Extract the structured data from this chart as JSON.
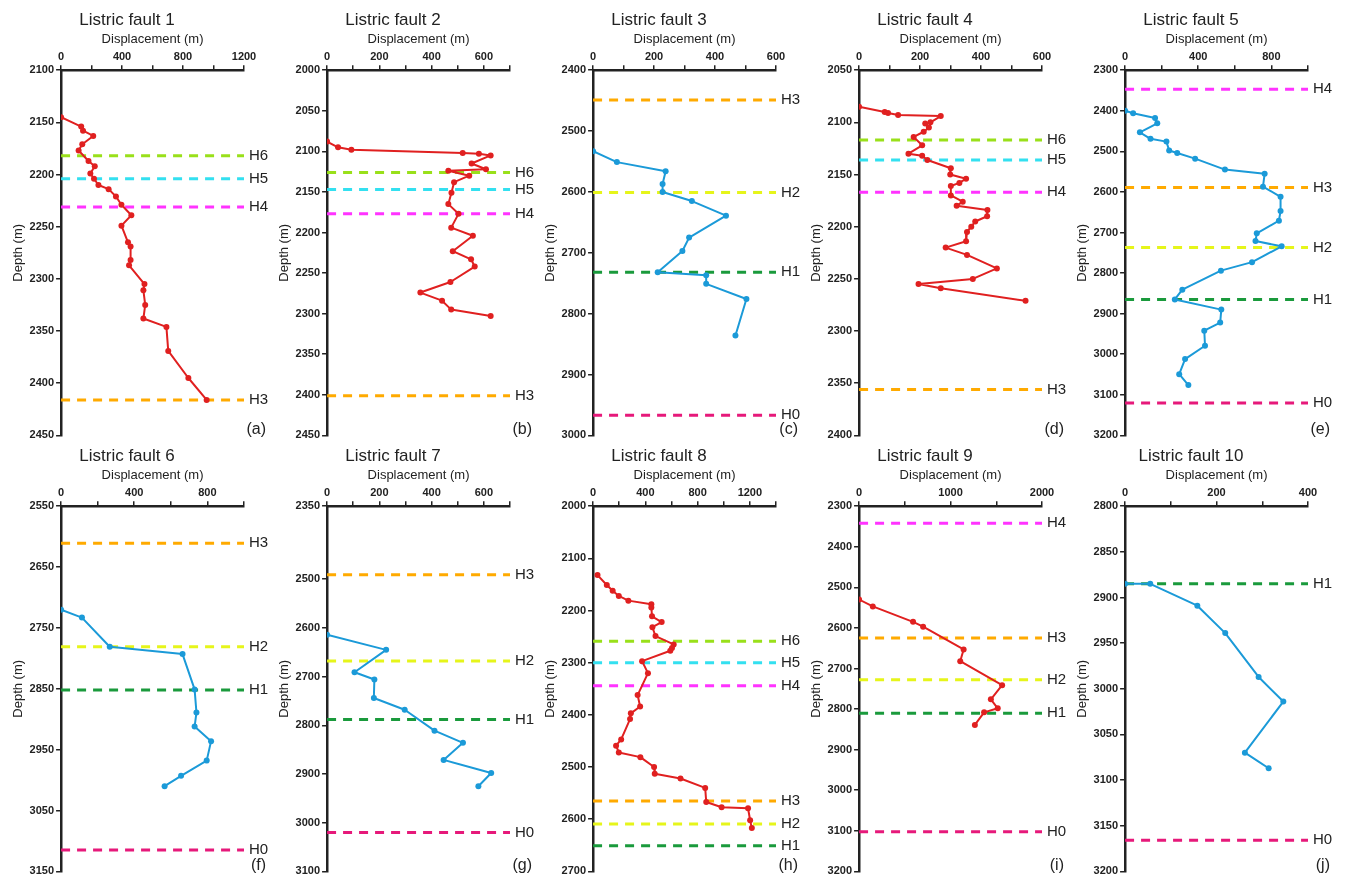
{
  "chart_data": [
    {
      "type": "line",
      "title": "Listric fault 1",
      "xlabel": "Displacement (m)",
      "ylabel": "Depth (m)",
      "xlim": [
        0,
        1200
      ],
      "xticks": [
        0,
        {
          "value": 200,
          "label": null
        },
        400,
        {
          "value": 600,
          "label": null
        },
        800,
        {
          "value": 1000,
          "label": null
        },
        1200
      ],
      "ylim": [
        2450,
        2100
      ],
      "yticks": [
        2100,
        2150,
        2200,
        2250,
        2300,
        2350,
        2400,
        2450
      ],
      "marker": "circle",
      "annotations": [
        "(a)"
      ],
      "series": [
        {
          "color": "#e02020",
          "x": [
            0,
            132,
            144,
            211,
            139,
            115,
            180,
            221,
            192,
            216,
            245,
            312,
            360,
            396,
            461,
            396,
            439,
            456,
            456,
            446,
            547,
            540,
            552,
            540,
            691,
            703,
            835,
            955
          ],
          "values": [
            2145,
            2154,
            2158,
            2163,
            2171,
            2177,
            2187,
            2192,
            2199,
            2204,
            2210,
            2214,
            2221,
            2229,
            2239,
            2249,
            2265,
            2269,
            2282,
            2287,
            2305,
            2311,
            2325,
            2338,
            2346,
            2369,
            2395,
            2416
          ]
        }
      ],
      "ref_lines": [
        {
          "axis": "y",
          "value": 2182,
          "label": "H6",
          "color": "#99e01a",
          "line_style": "dashed"
        },
        {
          "axis": "y",
          "value": 2204,
          "label": "H5",
          "color": "#33e0f0",
          "line_style": "dashed"
        },
        {
          "axis": "y",
          "value": 2231,
          "label": "H4",
          "color": "#ff33ff",
          "line_style": "dashed"
        },
        {
          "axis": "y",
          "value": 2416,
          "label": "H3",
          "color": "#ffaa00",
          "line_style": "dashed"
        }
      ]
    },
    {
      "type": "line",
      "title": "Listric fault 2",
      "xlabel": "Displacement (m)",
      "ylabel": "Depth (m)",
      "xlim": [
        0,
        700
      ],
      "xticks": [
        0,
        {
          "value": 100,
          "label": null
        },
        200,
        {
          "value": 300,
          "label": null
        },
        400,
        {
          "value": 500,
          "label": null
        },
        600,
        {
          "value": 700,
          "label": null
        }
      ],
      "ylim": [
        2450,
        2000
      ],
      "yticks": [
        2000,
        2050,
        2100,
        2150,
        2200,
        2250,
        2300,
        2350,
        2400,
        2450
      ],
      "marker": "circle",
      "annotations": [
        "(b)"
      ],
      "series": [
        {
          "color": "#e02020",
          "x": [
            0,
            42,
            93,
            519,
            581,
            626,
            553,
            608,
            464,
            544,
            486,
            476,
            464,
            503,
            475,
            558,
            481,
            551,
            565,
            472,
            357,
            440,
            475,
            626
          ],
          "values": [
            2088,
            2095,
            2098,
            2102,
            2103,
            2105,
            2115,
            2122,
            2124,
            2130,
            2138,
            2151,
            2165,
            2177,
            2194,
            2204,
            2223,
            2233,
            2242,
            2261,
            2274,
            2284,
            2295,
            2303
          ]
        }
      ],
      "ref_lines": [
        {
          "axis": "y",
          "value": 2126,
          "label": "H6",
          "color": "#99e01a",
          "line_style": "dashed"
        },
        {
          "axis": "y",
          "value": 2147,
          "label": "H5",
          "color": "#33e0f0",
          "line_style": "dashed"
        },
        {
          "axis": "y",
          "value": 2177,
          "label": "H4",
          "color": "#ff33ff",
          "line_style": "dashed"
        },
        {
          "axis": "y",
          "value": 2401,
          "label": "H3",
          "color": "#ffaa00",
          "line_style": "dashed"
        }
      ]
    },
    {
      "type": "line",
      "title": "Listric fault 3",
      "xlabel": "Displacement (m)",
      "ylabel": "Depth (m)",
      "xlim": [
        0,
        600
      ],
      "xticks": [
        0,
        {
          "value": 100,
          "label": null
        },
        200,
        {
          "value": 300,
          "label": null
        },
        400,
        {
          "value": 500,
          "label": null
        },
        600
      ],
      "ylim": [
        3000,
        2400
      ],
      "yticks": [
        2400,
        2500,
        2600,
        2700,
        2800,
        2900,
        3000
      ],
      "marker": "circle",
      "annotations": [
        "(c)"
      ],
      "series": [
        {
          "color": "#1b9ad8",
          "x": [
            0,
            78,
            238,
            228,
            228,
            324,
            436,
            315,
            293,
            212,
            371,
            371,
            503,
            467
          ],
          "values": [
            2533,
            2551,
            2566,
            2587,
            2600,
            2615,
            2639,
            2675,
            2697,
            2732,
            2737,
            2751,
            2776,
            2836
          ]
        }
      ],
      "ref_lines": [
        {
          "axis": "y",
          "value": 2449,
          "label": "H3",
          "color": "#ffaa00",
          "line_style": "dashed"
        },
        {
          "axis": "y",
          "value": 2601,
          "label": "H2",
          "color": "#e6f51a",
          "line_style": "dashed"
        },
        {
          "axis": "y",
          "value": 2732,
          "label": "H1",
          "color": "#1a9a3c",
          "line_style": "dashed"
        },
        {
          "axis": "y",
          "value": 2967,
          "label": "H0",
          "color": "#e6197a",
          "line_style": "dashed"
        }
      ]
    },
    {
      "type": "line",
      "title": "Listric fault 4",
      "xlabel": "Displacement (m)",
      "ylabel": "Depth (m)",
      "xlim": [
        0,
        600
      ],
      "xticks": [
        0,
        {
          "value": 100,
          "label": null
        },
        200,
        {
          "value": 300,
          "label": null
        },
        400,
        {
          "value": 500,
          "label": null
        },
        600
      ],
      "ylim": [
        2400,
        2050
      ],
      "yticks": [
        2050,
        2100,
        2150,
        2200,
        2250,
        2300,
        2350,
        2400
      ],
      "marker": "circle",
      "annotations": [
        "(d)"
      ],
      "series": [
        {
          "color": "#e02020",
          "x": [
            0,
            84,
            95,
            128,
            268,
            234,
            217,
            229,
            212,
            179,
            207,
            162,
            207,
            224,
            301,
            299,
            351,
            329,
            301,
            301,
            340,
            320,
            421,
            420,
            381,
            368,
            354,
            351,
            284,
            354,
            452,
            373,
            195,
            268,
            546
          ],
          "values": [
            2085,
            2090,
            2091,
            2093,
            2094,
            2100,
            2101,
            2105,
            2109,
            2114,
            2122,
            2130,
            2132,
            2136,
            2144,
            2150,
            2154,
            2158,
            2161,
            2170,
            2176,
            2180,
            2184,
            2190,
            2195,
            2200,
            2205,
            2214,
            2220,
            2227,
            2240,
            2250,
            2255,
            2259,
            2271
          ]
        }
      ],
      "ref_lines": [
        {
          "axis": "y",
          "value": 2117,
          "label": "H6",
          "color": "#99e01a",
          "line_style": "dashed"
        },
        {
          "axis": "y",
          "value": 2136,
          "label": "H5",
          "color": "#33e0f0",
          "line_style": "dashed"
        },
        {
          "axis": "y",
          "value": 2167,
          "label": "H4",
          "color": "#ff33ff",
          "line_style": "dashed"
        },
        {
          "axis": "y",
          "value": 2356,
          "label": "H3",
          "color": "#ffaa00",
          "line_style": "dashed"
        }
      ]
    },
    {
      "type": "line",
      "title": "Listric fault 5",
      "xlabel": "Displacement (m)",
      "ylabel": "Depth (m)",
      "xlim": [
        0,
        1000
      ],
      "xticks": [
        0,
        {
          "value": 200,
          "label": null
        },
        400,
        {
          "value": 600,
          "label": null
        },
        800,
        {
          "value": 1000,
          "label": null
        }
      ],
      "ylim": [
        3200,
        2300
      ],
      "yticks": [
        2300,
        2400,
        2500,
        2600,
        2700,
        2800,
        2900,
        3000,
        3100,
        3200
      ],
      "marker": "circle",
      "annotations": [
        "(e)"
      ],
      "series": [
        {
          "color": "#1b9ad8",
          "x": [
            0,
            44,
            164,
            176,
            81,
            139,
            226,
            241,
            285,
            383,
            546,
            763,
            754,
            850,
            850,
            841,
            720,
            713,
            856,
            694,
            524,
            313,
            272,
            526,
            520,
            433,
            437,
            328,
            296,
            346
          ],
          "values": [
            2400,
            2406,
            2418,
            2431,
            2453,
            2469,
            2476,
            2498,
            2504,
            2518,
            2545,
            2555,
            2587,
            2612,
            2647,
            2671,
            2702,
            2721,
            2734,
            2773,
            2794,
            2841,
            2865,
            2890,
            2922,
            2942,
            2979,
            3012,
            3049,
            3076
          ]
        }
      ],
      "ref_lines": [
        {
          "axis": "y",
          "value": 2347,
          "label": "H4",
          "color": "#ff33ff",
          "line_style": "dashed"
        },
        {
          "axis": "y",
          "value": 2589,
          "label": "H3",
          "color": "#ffaa00",
          "line_style": "dashed"
        },
        {
          "axis": "y",
          "value": 2737,
          "label": "H2",
          "color": "#e6f51a",
          "line_style": "dashed"
        },
        {
          "axis": "y",
          "value": 2865,
          "label": "H1",
          "color": "#1a9a3c",
          "line_style": "dashed"
        },
        {
          "axis": "y",
          "value": 3120,
          "label": "H0",
          "color": "#e6197a",
          "line_style": "dashed"
        }
      ]
    },
    {
      "type": "line",
      "title": "Listric fault 6",
      "xlabel": "Displacement (m)",
      "ylabel": "Depth (m)",
      "xlim": [
        0,
        1000
      ],
      "xticks": [
        0,
        {
          "value": 200,
          "label": null
        },
        400,
        {
          "value": 600,
          "label": null
        },
        800,
        {
          "value": 1000,
          "label": null
        }
      ],
      "ylim": [
        3150,
        2550
      ],
      "yticks": [
        2550,
        2650,
        2750,
        2850,
        2950,
        3050,
        3150
      ],
      "marker": "circle",
      "annotations": [
        "(f)"
      ],
      "series": [
        {
          "color": "#1b9ad8",
          "x": [
            0,
            114,
            266,
            664,
            730,
            740,
            730,
            820,
            796,
            656,
            566
          ],
          "values": [
            2720,
            2733,
            2781,
            2793,
            2851,
            2889,
            2912,
            2936,
            2968,
            2993,
            3010
          ]
        }
      ],
      "ref_lines": [
        {
          "axis": "y",
          "value": 2611,
          "label": "H3",
          "color": "#ffaa00",
          "line_style": "dashed"
        },
        {
          "axis": "y",
          "value": 2781,
          "label": "H2",
          "color": "#e6f51a",
          "line_style": "dashed"
        },
        {
          "axis": "y",
          "value": 2852,
          "label": "H1",
          "color": "#1a9a3c",
          "line_style": "dashed"
        },
        {
          "axis": "y",
          "value": 3115,
          "label": "H0",
          "color": "#e6197a",
          "line_style": "dashed"
        }
      ]
    },
    {
      "type": "line",
      "title": "Listric fault 7",
      "xlabel": "Displacement (m)",
      "ylabel": "Depth (m)",
      "xlim": [
        0,
        700
      ],
      "xticks": [
        0,
        {
          "value": 100,
          "label": null
        },
        200,
        {
          "value": 300,
          "label": null
        },
        400,
        {
          "value": 500,
          "label": null
        },
        600,
        {
          "value": 700,
          "label": null
        }
      ],
      "ylim": [
        3100,
        2350
      ],
      "yticks": [
        2350,
        2500,
        2600,
        2700,
        2800,
        2900,
        3000,
        3100
      ],
      "marker": "circle",
      "annotations": [
        "(g)"
      ],
      "series": [
        {
          "color": "#1b9ad8",
          "x": [
            0,
            226,
            105,
            181,
            179,
            297,
            411,
            520,
            446,
            628,
            579
          ],
          "values": [
            2614,
            2645,
            2691,
            2706,
            2744,
            2768,
            2811,
            2836,
            2871,
            2898,
            2925
          ]
        }
      ],
      "ref_lines": [
        {
          "axis": "y",
          "value": 2491,
          "label": "H3",
          "color": "#ffaa00",
          "line_style": "dashed"
        },
        {
          "axis": "y",
          "value": 2668,
          "label": "H2",
          "color": "#e6f51a",
          "line_style": "dashed"
        },
        {
          "axis": "y",
          "value": 2788,
          "label": "H1",
          "color": "#1a9a3c",
          "line_style": "dashed"
        },
        {
          "axis": "y",
          "value": 3020,
          "label": "H0",
          "color": "#e6197a",
          "line_style": "dashed"
        }
      ]
    },
    {
      "type": "line",
      "title": "Listric fault 8",
      "xlabel": "Displacement (m)",
      "ylabel": "Depth (m)",
      "xlim": [
        0,
        1400
      ],
      "xticks": [
        0,
        {
          "value": 200,
          "label": null
        },
        400,
        {
          "value": 600,
          "label": null
        },
        800,
        {
          "value": 1000,
          "label": null
        },
        1200,
        {
          "value": 1400,
          "label": null
        }
      ],
      "ylim": [
        2700,
        2000
      ],
      "yticks": [
        2000,
        2100,
        2200,
        2300,
        2400,
        2500,
        2600,
        2700
      ],
      "marker": "circle",
      "annotations": [
        "(h)"
      ],
      "series": [
        {
          "color": "#e02020",
          "x": [
            34,
            105,
            150,
            197,
            270,
            446,
            446,
            451,
            525,
            454,
            478,
            617,
            604,
            591,
            375,
            420,
            341,
            360,
            289,
            283,
            215,
            176,
            197,
            362,
            467,
            472,
            669,
            858,
            866,
            984,
            1186,
            1202,
            1215
          ],
          "values": [
            2132,
            2151,
            2162,
            2172,
            2181,
            2188,
            2194,
            2211,
            2222,
            2232,
            2249,
            2265,
            2272,
            2277,
            2297,
            2320,
            2362,
            2384,
            2397,
            2408,
            2447,
            2459,
            2472,
            2481,
            2500,
            2513,
            2522,
            2540,
            2567,
            2577,
            2579,
            2602,
            2617
          ]
        }
      ],
      "ref_lines": [
        {
          "axis": "y",
          "value": 2259,
          "label": "H6",
          "color": "#99e01a",
          "line_style": "dashed"
        },
        {
          "axis": "y",
          "value": 2300,
          "label": "H5",
          "color": "#33e0f0",
          "line_style": "dashed"
        },
        {
          "axis": "y",
          "value": 2344,
          "label": "H4",
          "color": "#ff33ff",
          "line_style": "dashed"
        },
        {
          "axis": "y",
          "value": 2565,
          "label": "H3",
          "color": "#ffaa00",
          "line_style": "dashed"
        },
        {
          "axis": "y",
          "value": 2609,
          "label": "H2",
          "color": "#e6f51a",
          "line_style": "dashed"
        },
        {
          "axis": "y",
          "value": 2651,
          "label": "H1",
          "color": "#1a9a3c",
          "line_style": "dashed"
        }
      ]
    },
    {
      "type": "line",
      "title": "Listric fault 9",
      "xlabel": "Displacement (m)",
      "ylabel": "Depth (m)",
      "xlim": [
        0,
        2000
      ],
      "xticks": [
        0,
        {
          "value": 500,
          "label": null
        },
        1000,
        {
          "value": 1500,
          "label": null
        },
        2000
      ],
      "ylim": [
        3200,
        2300
      ],
      "yticks": [
        2300,
        2400,
        2500,
        2600,
        2700,
        2800,
        2900,
        3000,
        3100,
        3200
      ],
      "marker": "circle",
      "annotations": [
        "(i)"
      ],
      "series": [
        {
          "color": "#e02020",
          "x": [
            0,
            150,
            590,
            700,
            1143,
            1106,
            1564,
            1441,
            1516,
            1367,
            1266
          ],
          "values": [
            2530,
            2547,
            2585,
            2597,
            2653,
            2682,
            2741,
            2776,
            2798,
            2808,
            2839
          ]
        }
      ],
      "ref_lines": [
        {
          "axis": "y",
          "value": 2342,
          "label": "H4",
          "color": "#ff33ff",
          "line_style": "dashed"
        },
        {
          "axis": "y",
          "value": 2625,
          "label": "H3",
          "color": "#ffaa00",
          "line_style": "dashed"
        },
        {
          "axis": "y",
          "value": 2728,
          "label": "H2",
          "color": "#e6f51a",
          "line_style": "dashed"
        },
        {
          "axis": "y",
          "value": 2810,
          "label": "H1",
          "color": "#1a9a3c",
          "line_style": "dashed"
        },
        {
          "axis": "y",
          "value": 3102,
          "label": "H0",
          "color": "#e6197a",
          "line_style": "dashed"
        }
      ]
    },
    {
      "type": "line",
      "title": "Listric fault 10",
      "xlabel": "Displacement (m)",
      "ylabel": "Depth (m)",
      "xlim": [
        0,
        400
      ],
      "xticks": [
        0,
        {
          "value": 100,
          "label": null
        },
        200,
        {
          "value": 300,
          "label": null
        },
        400
      ],
      "ylim": [
        3200,
        2800
      ],
      "yticks": [
        2800,
        2850,
        2900,
        2950,
        3000,
        3050,
        3100,
        3150,
        3200
      ],
      "marker": "circle",
      "annotations": [
        "(j)"
      ],
      "series": [
        {
          "color": "#1b9ad8",
          "x": [
            0,
            55,
            158,
            219,
            292,
            346,
            262,
            314
          ],
          "values": [
            2885,
            2885,
            2909,
            2939,
            2987,
            3014,
            3070,
            3087
          ]
        }
      ],
      "ref_lines": [
        {
          "axis": "y",
          "value": 2885,
          "label": "H1",
          "color": "#1a9a3c",
          "line_style": "dashed"
        },
        {
          "axis": "y",
          "value": 3166,
          "label": "H0",
          "color": "#e6197a",
          "line_style": "dashed"
        }
      ]
    }
  ]
}
